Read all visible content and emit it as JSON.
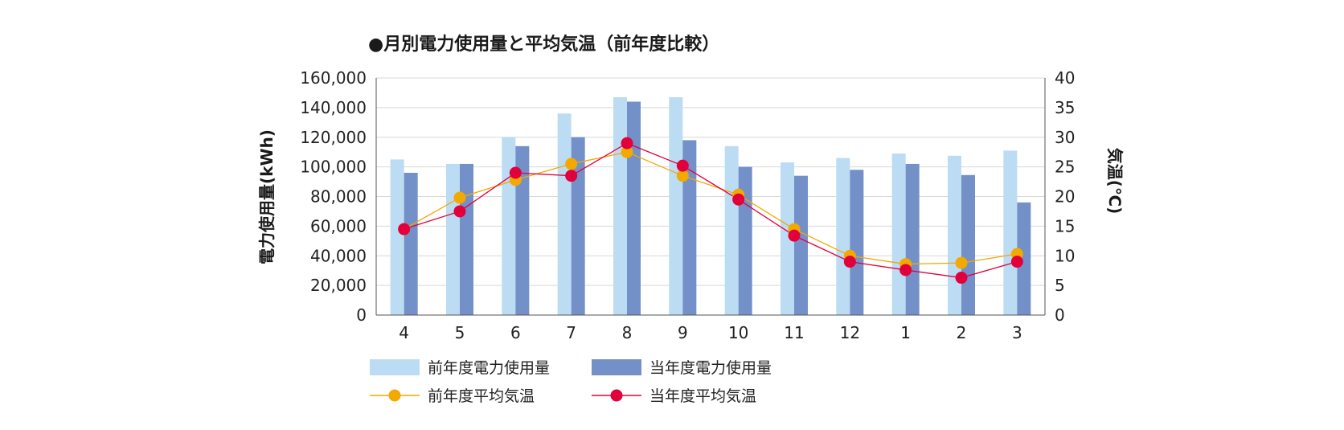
{
  "chart_data": {
    "type": "bar",
    "title": "●月別電力使用量と平均気温（前年度比較）",
    "ylabel": "電力使用量(kWh)",
    "y2label": "気温(℃)",
    "categories": [
      "4",
      "5",
      "6",
      "7",
      "8",
      "9",
      "10",
      "11",
      "12",
      "1",
      "2",
      "3"
    ],
    "ylim": [
      0,
      160000
    ],
    "yticks": [
      0,
      20000,
      40000,
      60000,
      80000,
      100000,
      120000,
      140000,
      160000
    ],
    "ytick_labels": [
      "0",
      "20,000",
      "40,000",
      "60,000",
      "80,000",
      "100,000",
      "120,000",
      "140,000",
      "160,000"
    ],
    "y2lim": [
      0,
      40
    ],
    "y2ticks": [
      0,
      5,
      10,
      15,
      20,
      25,
      30,
      35,
      40
    ],
    "y2tick_labels": [
      "0",
      "5",
      "10",
      "15",
      "20",
      "25",
      "30",
      "35",
      "40"
    ],
    "grid": true,
    "legend_position": "bottom",
    "series": [
      {
        "name": "前年度電力使用量",
        "kind": "bar",
        "axis": "left",
        "color": "#bcdcf4",
        "values": [
          105000,
          102000,
          120000,
          136000,
          147000,
          147000,
          114000,
          103000,
          106000,
          109000,
          107500,
          111000
        ]
      },
      {
        "name": "当年度電力使用量",
        "kind": "bar",
        "axis": "left",
        "color": "#7390c9",
        "values": [
          96000,
          102000,
          114000,
          120000,
          144000,
          118000,
          100000,
          94000,
          98000,
          102000,
          94500,
          76000
        ]
      },
      {
        "name": "前年度平均気温",
        "kind": "line",
        "axis": "right",
        "color": "#f2a900",
        "values": [
          14.5,
          19.8,
          22.8,
          25.5,
          27.5,
          23.5,
          20.3,
          14.5,
          10.0,
          8.6,
          8.8,
          10.3
        ]
      },
      {
        "name": "当年度平均気温",
        "kind": "line",
        "axis": "right",
        "color": "#e2003c",
        "values": [
          14.5,
          17.5,
          24.0,
          23.5,
          29.0,
          25.2,
          19.5,
          13.4,
          9.0,
          7.6,
          6.3,
          9.0
        ]
      }
    ]
  }
}
